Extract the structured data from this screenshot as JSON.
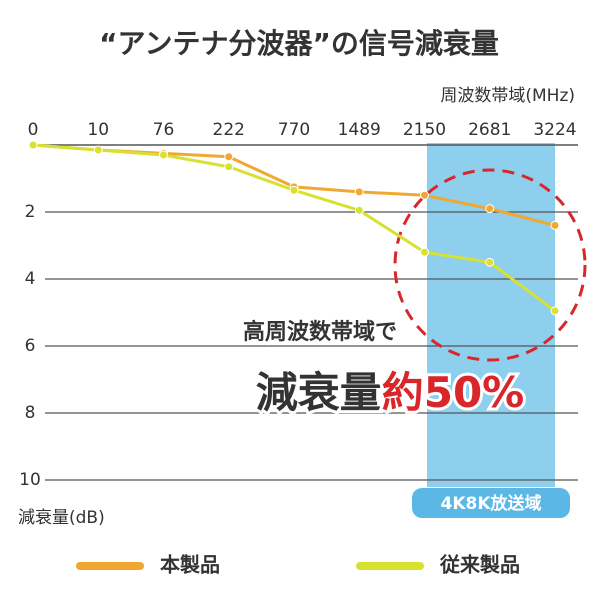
{
  "chart_data": {
    "type": "line",
    "title": "“アンテナ分波器”の信号減衰量",
    "x_label": "周波数帯域(MHz)",
    "y_label": "減衰量(dB)",
    "categories": [
      "0",
      "10",
      "76",
      "222",
      "770",
      "1489",
      "2150",
      "2681",
      "3224"
    ],
    "series": [
      {
        "name": "本製品",
        "color": "#f0a830",
        "values": [
          0,
          0.15,
          0.25,
          0.35,
          1.25,
          1.4,
          1.5,
          1.9,
          2.4
        ]
      },
      {
        "name": "従来製品",
        "color": "#d8e030",
        "values": [
          0,
          0.15,
          0.3,
          0.65,
          1.35,
          1.95,
          3.2,
          3.5,
          4.95
        ]
      }
    ],
    "ylim": [
      0,
      10
    ],
    "yticks": [
      2,
      4,
      6,
      8,
      10
    ],
    "y_inverted": true,
    "grid": true,
    "band_label": "4K8K放送域",
    "annotation": {
      "line1": "高周波数帯域で",
      "line2": "減衰量",
      "line2_highlight": "約50%"
    }
  }
}
